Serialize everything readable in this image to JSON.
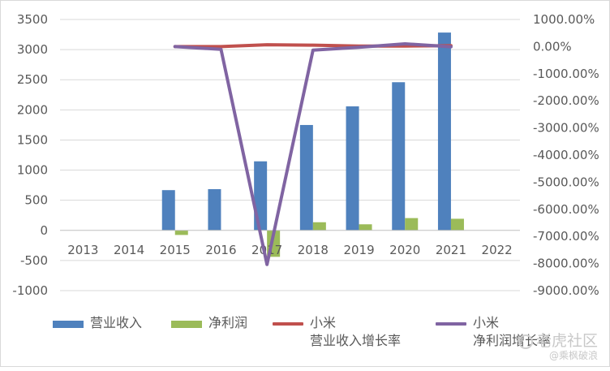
{
  "chart_data": {
    "type": "bar+line",
    "categories": [
      "2013",
      "2014",
      "2015",
      "2016",
      "2017",
      "2018",
      "2019",
      "2020",
      "2021",
      "2022"
    ],
    "y_left": {
      "min": -1000,
      "max": 3500,
      "ticks": [
        "3500",
        "3000",
        "2500",
        "2000",
        "1500",
        "1000",
        "500",
        "0",
        "-500",
        "-1000"
      ]
    },
    "y_right": {
      "min": -9000,
      "max": 1000,
      "ticks": [
        "1000.00%",
        "0.00%",
        "-1000.00%",
        "-2000.00%",
        "-3000.00%",
        "-4000.00%",
        "-5000.00%",
        "-6000.00%",
        "-7000.00%",
        "-8000.00%",
        "-9000.00%"
      ]
    },
    "grid": true,
    "legend_position": "bottom",
    "series": [
      {
        "name": "营业收入",
        "type": "bar",
        "axis": "left",
        "color": "#4f81bd",
        "values": [
          null,
          null,
          668,
          684,
          1146,
          1749,
          2058,
          2459,
          3283,
          null
        ]
      },
      {
        "name": "净利润",
        "type": "bar",
        "axis": "left",
        "color": "#9bbb59",
        "values": [
          null,
          null,
          -76,
          0,
          -439,
          135,
          101,
          204,
          193,
          null
        ]
      },
      {
        "name": "小米\n营业收入增长率",
        "type": "line",
        "axis": "right",
        "color": "#c0504d",
        "values": [
          null,
          null,
          0,
          2,
          67,
          53,
          18,
          20,
          33,
          null
        ]
      },
      {
        "name": "小米\n净利润增长率",
        "type": "line",
        "axis": "right",
        "color": "#8064a2",
        "values": [
          null,
          null,
          0,
          -100,
          -8035,
          -131,
          -25,
          102,
          -5,
          null
        ]
      }
    ]
  },
  "watermark": {
    "title": "老虎社区",
    "subtitle": "@乘枫破浪"
  }
}
